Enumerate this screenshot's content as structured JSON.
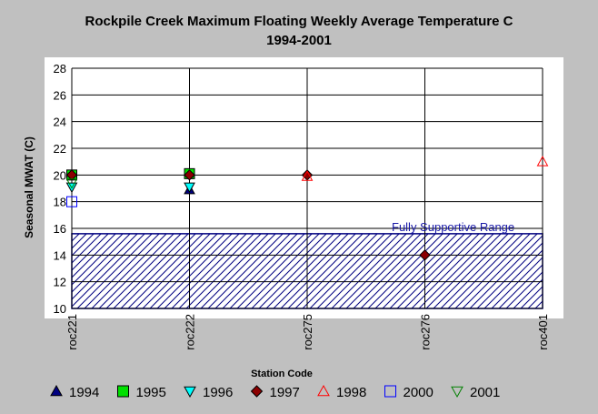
{
  "chart_data": {
    "type": "scatter",
    "title": "Rockpile Creek Maximum Floating Weekly Average Temperature C",
    "subtitle": "1994-2001",
    "xlabel": "Station Code",
    "ylabel": "Seasonal MWAT  (C)",
    "ylim": [
      10,
      28
    ],
    "yticks": [
      "10",
      "12",
      "14",
      "16",
      "18",
      "20",
      "22",
      "24",
      "26",
      "28"
    ],
    "categories": [
      "roc221",
      "roc222",
      "roc275",
      "roc276",
      "roc401"
    ],
    "grid": true,
    "legend_position": "bottom",
    "series": [
      {
        "name": "1994",
        "marker": "triangle-up",
        "color": "#000080",
        "filled": true,
        "points": [
          {
            "x": "roc222",
            "y": 18.9
          }
        ]
      },
      {
        "name": "1995",
        "marker": "square",
        "color": "#00e000",
        "filled": true,
        "points": [
          {
            "x": "roc221",
            "y": 20.0
          },
          {
            "x": "roc222",
            "y": 20.1
          }
        ]
      },
      {
        "name": "1996",
        "marker": "triangle-down",
        "color": "#00ffff",
        "filled": true,
        "points": [
          {
            "x": "roc221",
            "y": 19.1
          },
          {
            "x": "roc222",
            "y": 19.1
          }
        ]
      },
      {
        "name": "1997",
        "marker": "diamond",
        "color": "#8b0000",
        "filled": true,
        "points": [
          {
            "x": "roc221",
            "y": 20.0
          },
          {
            "x": "roc222",
            "y": 20.0
          },
          {
            "x": "roc275",
            "y": 20.0
          },
          {
            "x": "roc276",
            "y": 14.0
          }
        ]
      },
      {
        "name": "1998",
        "marker": "triangle-up",
        "color": "#ff0000",
        "filled": false,
        "points": [
          {
            "x": "roc275",
            "y": 19.9
          },
          {
            "x": "roc401",
            "y": 21.0
          }
        ]
      },
      {
        "name": "2000",
        "marker": "square",
        "color": "#0000ff",
        "filled": false,
        "points": [
          {
            "x": "roc221",
            "y": 18.0
          }
        ]
      },
      {
        "name": "2001",
        "marker": "triangle-down",
        "color": "#008000",
        "filled": false,
        "points": [
          {
            "x": "roc221",
            "y": 19.4
          }
        ]
      }
    ],
    "range_band": {
      "label": "Fully Supportive Range",
      "from": 10,
      "to": 15.6,
      "color": "#000080"
    }
  }
}
